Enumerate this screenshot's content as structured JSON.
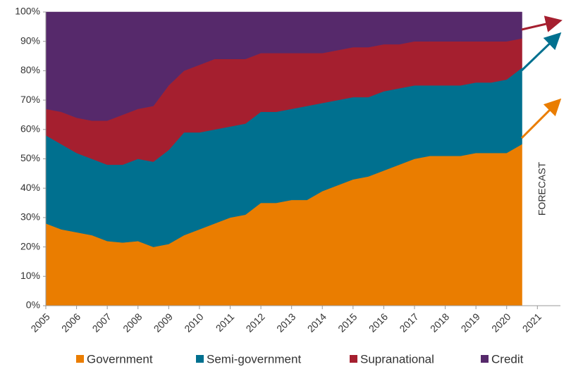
{
  "chart_data": {
    "type": "stacked-area",
    "annotation": "FORECAST",
    "x": [
      2005,
      2005.5,
      2006,
      2006.5,
      2007,
      2007.5,
      2008,
      2008.5,
      2009,
      2009.5,
      2010,
      2010.5,
      2011,
      2011.5,
      2012,
      2012.5,
      2013,
      2013.5,
      2014,
      2014.5,
      2015,
      2015.5,
      2016,
      2016.5,
      2017,
      2017.5,
      2018,
      2018.5,
      2019,
      2019.5,
      2020,
      2020.5
    ],
    "series": [
      {
        "name": "Government",
        "color": "#ea7d00",
        "values": [
          28,
          26,
          25,
          24,
          22,
          21.5,
          22,
          20,
          21,
          24,
          26,
          28,
          30,
          31,
          35,
          35,
          36,
          36,
          39,
          41,
          43,
          44,
          46,
          48,
          50,
          51,
          51,
          51,
          52,
          52,
          52,
          55
        ]
      },
      {
        "name": "Semi-government",
        "color": "#00708f",
        "values": [
          30,
          29,
          27,
          26,
          26,
          26.5,
          28,
          29,
          32,
          35,
          33,
          32,
          31,
          31,
          31,
          31,
          31,
          32,
          30,
          29,
          28,
          27,
          27,
          26,
          25,
          24,
          24,
          24,
          24,
          24,
          25,
          26
        ]
      },
      {
        "name": "Supranational",
        "color": "#a51f2f",
        "values": [
          9,
          11,
          12,
          13,
          15,
          17,
          17,
          19,
          22,
          21,
          23,
          24,
          23,
          22,
          20,
          20,
          19,
          18,
          17,
          17,
          17,
          17,
          16,
          15,
          15,
          15,
          15,
          15,
          14,
          14,
          13,
          10
        ]
      },
      {
        "name": "Credit",
        "color": "#56296b",
        "values": [
          33,
          34,
          36,
          37,
          37,
          35,
          33,
          32,
          25,
          20,
          18,
          16,
          16,
          16,
          14,
          14,
          14,
          14,
          14,
          13,
          12,
          12,
          11,
          11,
          10,
          10,
          10,
          10,
          10,
          10,
          10,
          9
        ]
      }
    ],
    "xlim": [
      2005,
      2021.75
    ],
    "xticks": [
      2005,
      2006,
      2007,
      2008,
      2009,
      2010,
      2011,
      2012,
      2013,
      2014,
      2015,
      2016,
      2017,
      2018,
      2019,
      2020,
      2021
    ],
    "ylim": [
      0,
      100
    ],
    "yticks": [
      {
        "value": 0,
        "label": "0%"
      },
      {
        "value": 10,
        "label": "10%"
      },
      {
        "value": 20,
        "label": "20%"
      },
      {
        "value": 30,
        "label": "30%"
      },
      {
        "value": 40,
        "label": "40%"
      },
      {
        "value": 50,
        "label": "50%"
      },
      {
        "value": 60,
        "label": "60%"
      },
      {
        "value": 70,
        "label": "70%"
      },
      {
        "value": 80,
        "label": "80%"
      },
      {
        "value": 90,
        "label": "90%"
      },
      {
        "value": 100,
        "label": "100%"
      }
    ],
    "grid": false
  }
}
